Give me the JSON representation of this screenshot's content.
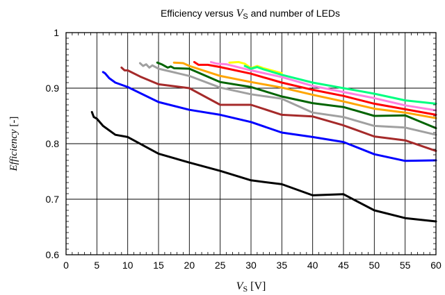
{
  "chart_data": {
    "type": "line",
    "title": {
      "prefix": "Efficiency versus ",
      "var": "V",
      "var_sub": "S",
      "suffix": " and number of LEDs"
    },
    "xlabel": {
      "var": "V",
      "var_sub": "S",
      "unit": " [V]"
    },
    "ylabel": {
      "italic": "Efficiency",
      "unit": " [-]"
    },
    "xlim": [
      0,
      60
    ],
    "ylim": [
      0.6,
      1.0
    ],
    "xticks": [
      "0",
      "5",
      "10",
      "15",
      "20",
      "25",
      "30",
      "35",
      "40",
      "45",
      "50",
      "55",
      "60"
    ],
    "yticks": [
      "0.6",
      "0.7",
      "0.8",
      "0.9",
      "1"
    ],
    "grid": true,
    "legend": "none",
    "series": [
      {
        "color": "#000000",
        "points": [
          [
            4.2,
            0.857
          ],
          [
            4.5,
            0.848
          ],
          [
            5,
            0.845
          ],
          [
            6,
            0.832
          ],
          [
            8,
            0.816
          ],
          [
            10,
            0.812
          ],
          [
            15,
            0.782
          ],
          [
            20,
            0.766
          ],
          [
            25,
            0.751
          ],
          [
            30,
            0.734
          ],
          [
            35,
            0.727
          ],
          [
            40,
            0.707
          ],
          [
            45,
            0.709
          ],
          [
            50,
            0.68
          ],
          [
            55,
            0.666
          ],
          [
            60,
            0.66
          ]
        ]
      },
      {
        "color": "#0000ff",
        "points": [
          [
            6.0,
            0.929
          ],
          [
            6.3,
            0.927
          ],
          [
            7,
            0.918
          ],
          [
            8,
            0.91
          ],
          [
            10,
            0.902
          ],
          [
            15,
            0.875
          ],
          [
            20,
            0.861
          ],
          [
            25,
            0.852
          ],
          [
            30,
            0.839
          ],
          [
            35,
            0.82
          ],
          [
            40,
            0.812
          ],
          [
            45,
            0.803
          ],
          [
            50,
            0.781
          ],
          [
            55,
            0.769
          ],
          [
            60,
            0.77
          ]
        ]
      },
      {
        "color": "#a52a2a",
        "points": [
          [
            9.0,
            0.937
          ],
          [
            9.5,
            0.932
          ],
          [
            10,
            0.932
          ],
          [
            12,
            0.921
          ],
          [
            15,
            0.907
          ],
          [
            20,
            0.9
          ],
          [
            25,
            0.87
          ],
          [
            30,
            0.87
          ],
          [
            35,
            0.852
          ],
          [
            40,
            0.849
          ],
          [
            45,
            0.833
          ],
          [
            50,
            0.813
          ],
          [
            55,
            0.806
          ],
          [
            60,
            0.787
          ]
        ]
      },
      {
        "color": "#a0a0a0",
        "points": [
          [
            12.0,
            0.945
          ],
          [
            12.5,
            0.94
          ],
          [
            13,
            0.943
          ],
          [
            13.5,
            0.937
          ],
          [
            14,
            0.941
          ],
          [
            15,
            0.935
          ],
          [
            20,
            0.922
          ],
          [
            25,
            0.901
          ],
          [
            30,
            0.889
          ],
          [
            35,
            0.881
          ],
          [
            40,
            0.856
          ],
          [
            45,
            0.848
          ],
          [
            50,
            0.832
          ],
          [
            55,
            0.829
          ],
          [
            60,
            0.816
          ]
        ]
      },
      {
        "color": "#006400",
        "points": [
          [
            14.8,
            0.946
          ],
          [
            15.5,
            0.943
          ],
          [
            16.5,
            0.937
          ],
          [
            17,
            0.939
          ],
          [
            17.5,
            0.936
          ],
          [
            20,
            0.935
          ],
          [
            25,
            0.911
          ],
          [
            30,
            0.902
          ],
          [
            35,
            0.885
          ],
          [
            40,
            0.873
          ],
          [
            45,
            0.866
          ],
          [
            50,
            0.85
          ],
          [
            55,
            0.851
          ],
          [
            60,
            0.828
          ]
        ]
      },
      {
        "color": "#ffa500",
        "points": [
          [
            17.5,
            0.946
          ],
          [
            19,
            0.945
          ],
          [
            20,
            0.94
          ],
          [
            25,
            0.922
          ],
          [
            30,
            0.911
          ],
          [
            35,
            0.901
          ],
          [
            40,
            0.888
          ],
          [
            45,
            0.876
          ],
          [
            50,
            0.863
          ],
          [
            55,
            0.856
          ],
          [
            60,
            0.846
          ]
        ]
      },
      {
        "color": "#ff0000",
        "points": [
          [
            20.8,
            0.947
          ],
          [
            21.5,
            0.942
          ],
          [
            23,
            0.942
          ],
          [
            25,
            0.938
          ],
          [
            30,
            0.926
          ],
          [
            35,
            0.91
          ],
          [
            40,
            0.897
          ],
          [
            45,
            0.886
          ],
          [
            50,
            0.872
          ],
          [
            55,
            0.862
          ],
          [
            60,
            0.852
          ]
        ]
      },
      {
        "color": "#ff80e0",
        "points": [
          [
            23.5,
            0.947
          ],
          [
            24.5,
            0.944
          ],
          [
            26,
            0.943
          ],
          [
            30,
            0.932
          ],
          [
            35,
            0.92
          ],
          [
            40,
            0.904
          ],
          [
            45,
            0.893
          ],
          [
            50,
            0.882
          ],
          [
            55,
            0.869
          ],
          [
            60,
            0.86
          ]
        ]
      },
      {
        "color": "#ffff00",
        "points": [
          [
            26.5,
            0.946
          ],
          [
            28,
            0.947
          ],
          [
            29,
            0.944
          ],
          [
            30,
            0.936
          ],
          [
            31,
            0.94
          ],
          [
            32,
            0.936
          ],
          [
            35,
            0.927
          ]
        ]
      },
      {
        "color": "#00ff80",
        "points": [
          [
            29.0,
            0.94
          ],
          [
            30,
            0.935
          ],
          [
            31,
            0.938
          ],
          [
            32,
            0.934
          ],
          [
            35,
            0.924
          ],
          [
            40,
            0.91
          ],
          [
            45,
            0.9
          ],
          [
            50,
            0.89
          ],
          [
            55,
            0.878
          ],
          [
            60,
            0.872
          ]
        ]
      }
    ]
  }
}
